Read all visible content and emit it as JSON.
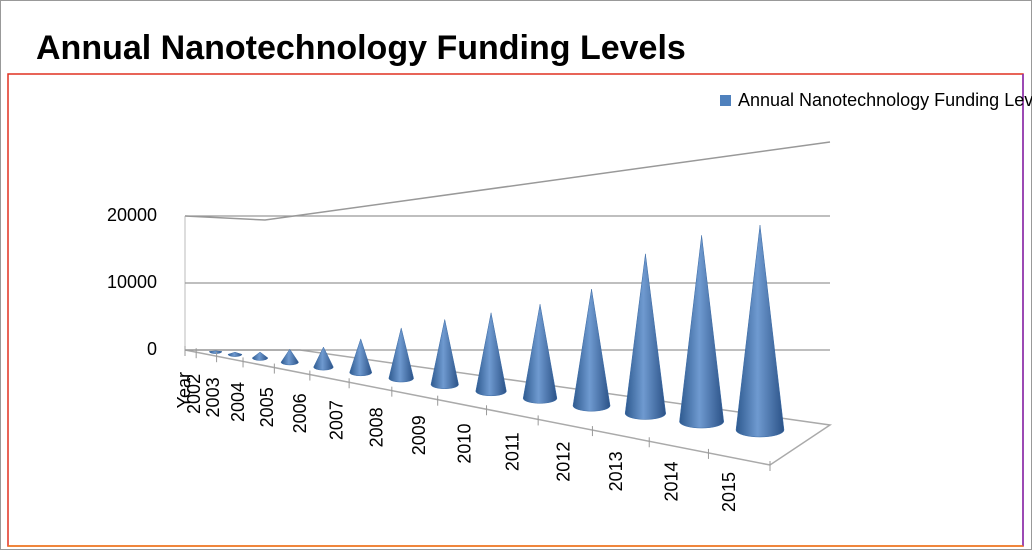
{
  "chart_data": {
    "type": "cone3d",
    "title": "Annual Nanotechnology Funding Levels",
    "categories": [
      "Year",
      "2002",
      "2003",
      "2004",
      "2005",
      "2006",
      "2007",
      "2008",
      "2009",
      "2010",
      "2011",
      "2012",
      "2013",
      "2014",
      "2015"
    ],
    "series": [
      {
        "name": "Annual Nanotechnology Funding Levels",
        "color": "#4f81bd",
        "values": [
          null,
          100,
          300,
          800,
          1700,
          2500,
          4000,
          5700,
          7000,
          8000,
          9100,
          10700,
          13900,
          15400,
          16100
        ]
      }
    ],
    "ylim": [
      0,
      20000
    ],
    "yticks": [
      0,
      10000,
      20000
    ],
    "grid": true,
    "legend": "top-right"
  }
}
